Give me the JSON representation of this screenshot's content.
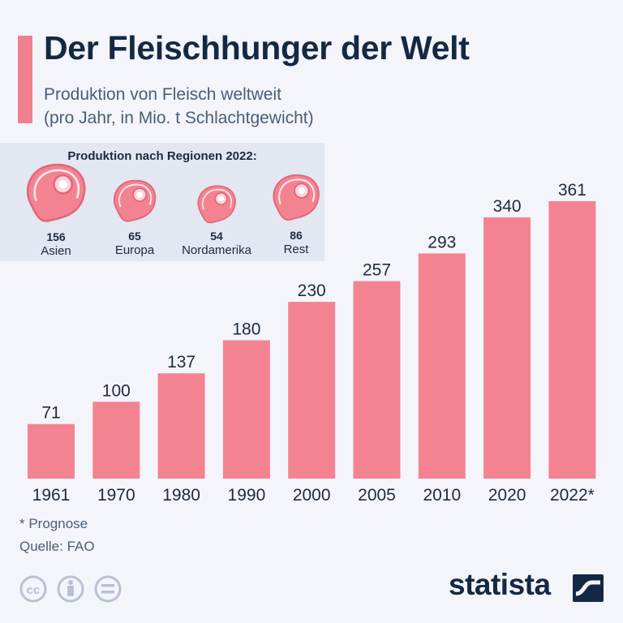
{
  "header": {
    "title": "Der Fleischhunger der Welt",
    "subtitle_line1": "Produktion von Fleisch weltweit",
    "subtitle_line2": "(pro Jahr, in Mio. t Schlachtgewicht)"
  },
  "regions": {
    "heading": "Produktion nach Regionen 2022:",
    "items": [
      {
        "name": "Asien",
        "value": "156"
      },
      {
        "name": "Europa",
        "value": "65"
      },
      {
        "name": "Nordamerika",
        "value": "54"
      },
      {
        "name": "Rest",
        "value": "86"
      }
    ]
  },
  "chart_data": {
    "type": "bar",
    "categories": [
      "1961",
      "1970",
      "1980",
      "1990",
      "2000",
      "2005",
      "2010",
      "2020",
      "2022*"
    ],
    "values": [
      71,
      100,
      137,
      180,
      230,
      257,
      293,
      340,
      361
    ],
    "data_labels": [
      "71",
      "100",
      "137",
      "180",
      "230",
      "257",
      "293",
      "340",
      "361"
    ],
    "title": "Der Fleischhunger der Welt",
    "subtitle": "Produktion von Fleisch weltweit (pro Jahr, in Mio. t Schlachtgewicht)",
    "xlabel": "",
    "ylabel": "",
    "ylim": [
      0,
      361
    ],
    "grid": false,
    "bar_color": "#f48392"
  },
  "footer": {
    "note": "* Prognose",
    "source": "Quelle: FAO",
    "brand": "statista"
  },
  "colors": {
    "accent": "#f07f90",
    "title": "#152843",
    "bar": "#f48392",
    "panel": "#e2e7f2"
  },
  "icons": [
    "steak-icon",
    "cc-icon",
    "by-icon",
    "nd-icon",
    "statista-logo-icon"
  ]
}
